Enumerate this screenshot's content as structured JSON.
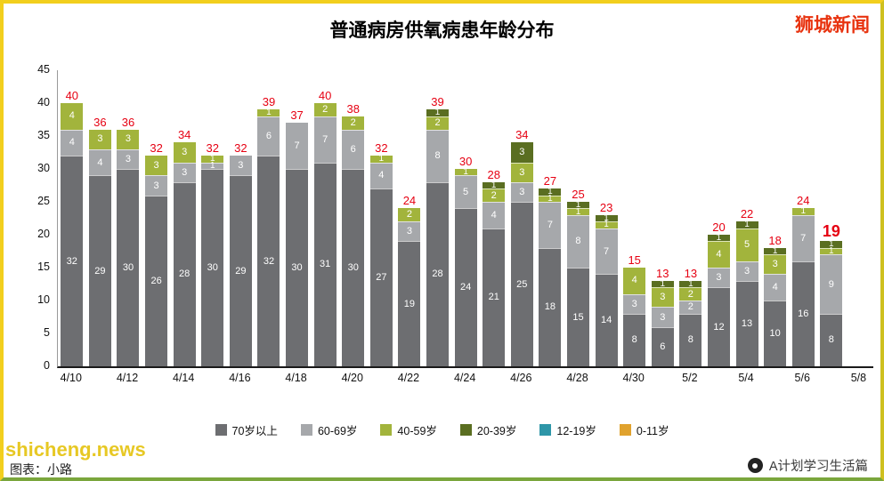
{
  "page": {
    "brand": "狮城新闻",
    "footer_watermark": "shicheng.news",
    "footer_credit": "图表：小路",
    "footer_account": "A计划学习生活篇"
  },
  "chart_data": {
    "type": "bar",
    "stacked": true,
    "title": "普通病房供氧病患年龄分布",
    "xlabel": "",
    "ylabel": "",
    "ylim": [
      0,
      45
    ],
    "yticks": [
      0,
      5,
      10,
      15,
      20,
      25,
      30,
      35,
      40,
      45
    ],
    "grid": false,
    "legend_position": "bottom",
    "total_label_color": "#e60012",
    "groups": [
      {
        "name": "70岁以上",
        "color": "#6d6e71"
      },
      {
        "name": "60-69岁",
        "color": "#a6a8ab"
      },
      {
        "name": "40-59岁",
        "color": "#a2b43c"
      },
      {
        "name": "20-39岁",
        "color": "#5a6e21"
      },
      {
        "name": "12-19岁",
        "color": "#2e96a8"
      },
      {
        "name": "0-11岁",
        "color": "#e0a22e"
      }
    ],
    "xticks": [
      "4/10",
      "4/12",
      "4/14",
      "4/16",
      "4/18",
      "4/20",
      "4/22",
      "4/24",
      "4/26",
      "4/28",
      "4/30",
      "5/2",
      "5/4",
      "5/6",
      "5/8"
    ],
    "bars": [
      {
        "date": "4/10",
        "total": 40,
        "values": [
          32,
          4,
          4,
          0,
          0,
          0
        ]
      },
      {
        "date": "4/11",
        "total": 36,
        "values": [
          29,
          4,
          3,
          0,
          0,
          0
        ]
      },
      {
        "date": "4/12",
        "total": 36,
        "values": [
          30,
          3,
          3,
          0,
          0,
          0
        ]
      },
      {
        "date": "4/13",
        "total": 32,
        "values": [
          26,
          3,
          3,
          0,
          0,
          0
        ]
      },
      {
        "date": "4/14",
        "total": 34,
        "values": [
          28,
          3,
          3,
          0,
          0,
          0
        ]
      },
      {
        "date": "4/15",
        "total": 32,
        "values": [
          30,
          1,
          1,
          0,
          0,
          0
        ]
      },
      {
        "date": "4/16",
        "total": 32,
        "values": [
          29,
          3,
          0,
          0,
          0,
          0
        ]
      },
      {
        "date": "4/17",
        "total": 39,
        "values": [
          32,
          6,
          1,
          0,
          0,
          0
        ]
      },
      {
        "date": "4/18",
        "total": 37,
        "values": [
          30,
          7,
          0,
          0,
          0,
          0
        ]
      },
      {
        "date": "4/19",
        "total": 40,
        "values": [
          31,
          7,
          2,
          0,
          0,
          0
        ]
      },
      {
        "date": "4/20",
        "total": 38,
        "values": [
          30,
          6,
          2,
          0,
          0,
          0
        ]
      },
      {
        "date": "4/21",
        "total": 32,
        "values": [
          27,
          4,
          1,
          0,
          0,
          0
        ]
      },
      {
        "date": "4/22",
        "total": 24,
        "values": [
          19,
          3,
          2,
          0,
          0,
          0
        ]
      },
      {
        "date": "4/23",
        "total": 39,
        "values": [
          28,
          8,
          2,
          1,
          0,
          0
        ]
      },
      {
        "date": "4/24",
        "total": 30,
        "values": [
          24,
          5,
          1,
          0,
          0,
          0
        ]
      },
      {
        "date": "4/25",
        "total": 28,
        "values": [
          21,
          4,
          2,
          1,
          0,
          0
        ]
      },
      {
        "date": "4/26",
        "total": 34,
        "values": [
          25,
          3,
          3,
          3,
          0,
          0
        ]
      },
      {
        "date": "4/27",
        "total": 27,
        "values": [
          18,
          7,
          1,
          1,
          0,
          0
        ]
      },
      {
        "date": "4/28",
        "total": 25,
        "values": [
          15,
          8,
          1,
          1,
          0,
          0
        ]
      },
      {
        "date": "4/29",
        "total": 23,
        "values": [
          14,
          7,
          1,
          1,
          0,
          0
        ]
      },
      {
        "date": "4/30",
        "total": 15,
        "values": [
          8,
          3,
          4,
          0,
          0,
          0
        ]
      },
      {
        "date": "5/1",
        "total": 13,
        "values": [
          6,
          3,
          3,
          1,
          0,
          0
        ]
      },
      {
        "date": "5/2",
        "total": 13,
        "values": [
          8,
          2,
          2,
          1,
          0,
          0
        ]
      },
      {
        "date": "5/3",
        "total": 20,
        "values": [
          12,
          3,
          4,
          1,
          0,
          0
        ]
      },
      {
        "date": "5/4",
        "total": 22,
        "values": [
          13,
          3,
          5,
          1,
          0,
          0
        ]
      },
      {
        "date": "5/5",
        "total": 18,
        "values": [
          10,
          4,
          3,
          1,
          0,
          0
        ]
      },
      {
        "date": "5/6",
        "total": 24,
        "values": [
          16,
          7,
          1,
          0,
          0,
          0
        ]
      },
      {
        "date": "5/7",
        "total": 19,
        "values": [
          8,
          9,
          1,
          1,
          0,
          0
        ],
        "emphasis": true
      }
    ]
  }
}
